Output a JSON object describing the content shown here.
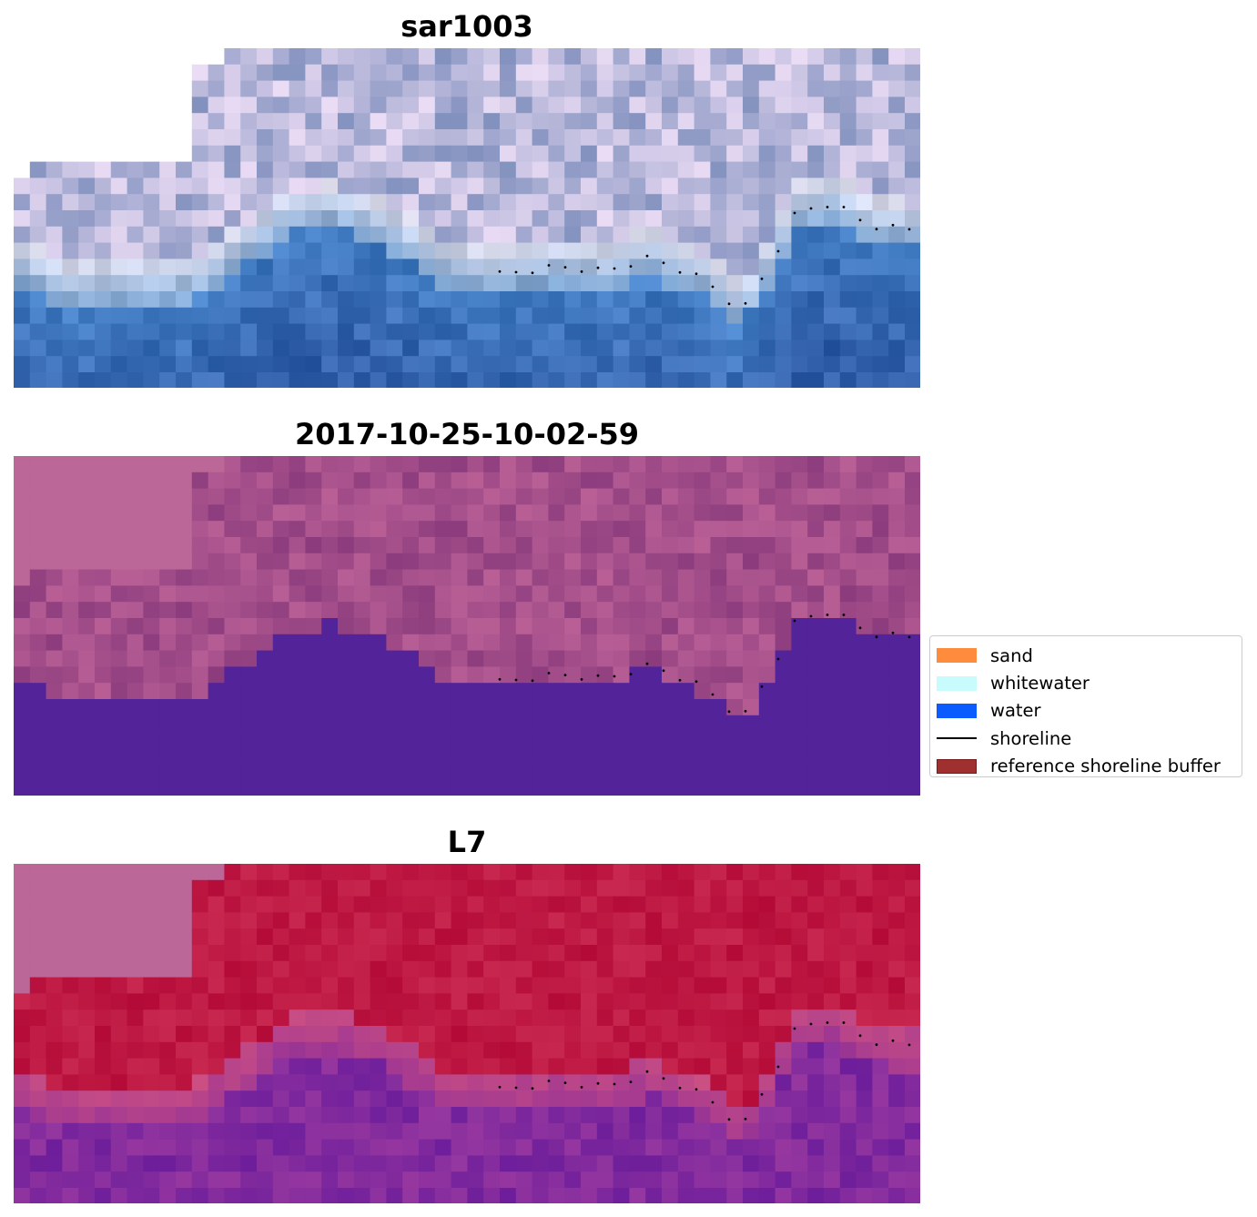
{
  "figure": {
    "panels": [
      {
        "id": "rgb",
        "title": "sar1003"
      },
      {
        "id": "classified",
        "title": "2017-10-25-10-02-59"
      },
      {
        "id": "index",
        "title": "L7"
      }
    ]
  },
  "legend": {
    "items": [
      {
        "label": "sand",
        "kind": "patch",
        "color": "#ff8c3c",
        "edge": "#ff8c3c"
      },
      {
        "label": "whitewater",
        "kind": "patch",
        "color": "#c8fcfc",
        "edge": "#c8fcfc"
      },
      {
        "label": "water",
        "kind": "patch",
        "color": "#0a5cff",
        "edge": "#0a5cff"
      },
      {
        "label": "shoreline",
        "kind": "line",
        "color": "#000000"
      },
      {
        "label": "reference shoreline buffer",
        "kind": "patch",
        "color": "#a03030",
        "edge": "#7a1c1c"
      }
    ]
  },
  "colors": {
    "water_class": "#53239a",
    "nodata_pink": "#bb6797",
    "index_high": "#be0d3a",
    "index_low": "#6a1a9a"
  }
}
